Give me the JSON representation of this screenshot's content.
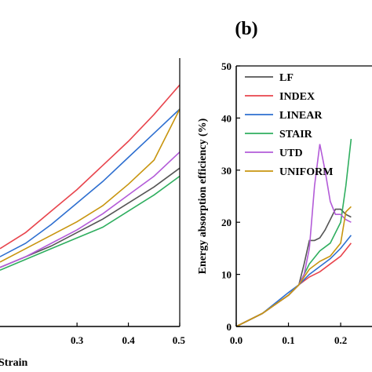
{
  "panel_b_label": "(b)",
  "chart_data": [
    {
      "type": "line",
      "panel": "a",
      "xlabel": "Strain",
      "xlim": [
        0.15,
        0.5
      ],
      "ylim": [
        0,
        1
      ],
      "xticks": [
        0.3,
        0.4,
        0.5
      ],
      "xtick_labels": [
        "0.3",
        "0.4",
        "0.5"
      ],
      "series": [
        {
          "name": "LF",
          "color": "#555555",
          "x": [
            0.15,
            0.2,
            0.25,
            0.3,
            0.35,
            0.4,
            0.45,
            0.5
          ],
          "y": [
            0.22,
            0.26,
            0.3,
            0.35,
            0.4,
            0.46,
            0.52,
            0.59
          ]
        },
        {
          "name": "INDEX",
          "color": "#e8454d",
          "x": [
            0.15,
            0.2,
            0.25,
            0.3,
            0.35,
            0.4,
            0.45,
            0.5
          ],
          "y": [
            0.29,
            0.35,
            0.43,
            0.51,
            0.6,
            0.69,
            0.79,
            0.9
          ]
        },
        {
          "name": "LINEAR",
          "color": "#2e6fd0",
          "x": [
            0.15,
            0.2,
            0.25,
            0.3,
            0.35,
            0.4,
            0.45,
            0.5
          ],
          "y": [
            0.26,
            0.31,
            0.38,
            0.46,
            0.54,
            0.63,
            0.72,
            0.81
          ]
        },
        {
          "name": "STAIR",
          "color": "#2fae5f",
          "x": [
            0.15,
            0.2,
            0.25,
            0.3,
            0.35,
            0.4,
            0.45,
            0.5
          ],
          "y": [
            0.21,
            0.25,
            0.29,
            0.33,
            0.37,
            0.43,
            0.49,
            0.56
          ]
        },
        {
          "name": "UTD",
          "color": "#b35bd8",
          "x": [
            0.15,
            0.2,
            0.25,
            0.3,
            0.35,
            0.4,
            0.45,
            0.5
          ],
          "y": [
            0.22,
            0.26,
            0.31,
            0.36,
            0.42,
            0.49,
            0.56,
            0.65
          ]
        },
        {
          "name": "UNIFORM",
          "color": "#c8950f",
          "x": [
            0.15,
            0.2,
            0.25,
            0.3,
            0.35,
            0.4,
            0.45,
            0.5
          ],
          "y": [
            0.24,
            0.29,
            0.34,
            0.39,
            0.45,
            0.53,
            0.62,
            0.81
          ]
        }
      ]
    },
    {
      "type": "line",
      "panel": "b",
      "ylabel": "Energy absorption efficiency (%)",
      "xlim": [
        0,
        0.5
      ],
      "ylim": [
        0,
        50
      ],
      "xticks": [
        0.0,
        0.1,
        0.2
      ],
      "xtick_labels": [
        "0.0",
        "0.1",
        "0.2"
      ],
      "yticks": [
        0,
        10,
        20,
        30,
        40,
        50
      ],
      "ytick_labels": [
        "0",
        "10",
        "20",
        "30",
        "40",
        "50"
      ],
      "legend": "top-left",
      "series": [
        {
          "name": "LF",
          "color": "#555555",
          "x": [
            0,
            0.05,
            0.1,
            0.12,
            0.13,
            0.14,
            0.15,
            0.16,
            0.17,
            0.18,
            0.19,
            0.2,
            0.21,
            0.22
          ],
          "y": [
            0,
            2.5,
            6,
            8,
            12,
            16.5,
            16.5,
            17,
            18.5,
            20.5,
            22.5,
            22.5,
            21.5,
            21
          ]
        },
        {
          "name": "INDEX",
          "color": "#e8454d",
          "x": [
            0,
            0.05,
            0.1,
            0.12,
            0.14,
            0.16,
            0.18,
            0.2,
            0.22
          ],
          "y": [
            0,
            2.5,
            6,
            8,
            9.5,
            10.5,
            12,
            13.5,
            16
          ]
        },
        {
          "name": "LINEAR",
          "color": "#2e6fd0",
          "x": [
            0,
            0.05,
            0.1,
            0.12,
            0.14,
            0.16,
            0.18,
            0.2,
            0.22
          ],
          "y": [
            0,
            2.5,
            6.5,
            8,
            10,
            11.5,
            13,
            15,
            17.5
          ]
        },
        {
          "name": "STAIR",
          "color": "#2fae5f",
          "x": [
            0,
            0.05,
            0.1,
            0.12,
            0.14,
            0.16,
            0.18,
            0.2,
            0.21,
            0.22
          ],
          "y": [
            0,
            2.5,
            6,
            8,
            12,
            14.5,
            16,
            20,
            27,
            36
          ]
        },
        {
          "name": "UTD",
          "color": "#b35bd8",
          "x": [
            0,
            0.05,
            0.1,
            0.12,
            0.13,
            0.14,
            0.15,
            0.16,
            0.17,
            0.18,
            0.19,
            0.2,
            0.21,
            0.22
          ],
          "y": [
            0,
            2.5,
            6,
            8,
            10,
            15,
            27,
            35,
            30,
            24,
            21.5,
            21.5,
            20.5,
            20
          ]
        },
        {
          "name": "UNIFORM",
          "color": "#c8950f",
          "x": [
            0,
            0.05,
            0.1,
            0.12,
            0.14,
            0.16,
            0.18,
            0.2,
            0.21,
            0.22
          ],
          "y": [
            0,
            2.5,
            6,
            8,
            11,
            12.5,
            13.5,
            16,
            22,
            23
          ]
        }
      ]
    }
  ]
}
